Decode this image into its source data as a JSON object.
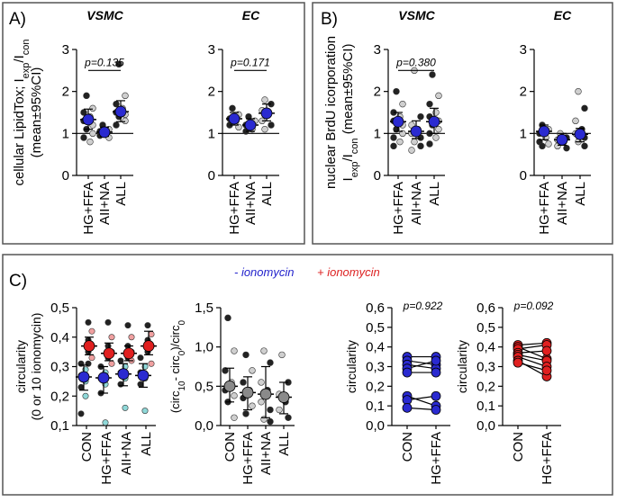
{
  "colors": {
    "panel_border": "#555555",
    "minus_label": "#2222cc",
    "plus_label": "#dd2222",
    "blue_mean": "#2a2ad0",
    "red_mean": "#e02020",
    "gray_mean": "#8a8a8a",
    "cyan_point": "#8fd8d8",
    "pink_point": "#f0a0a0",
    "dark_point": "#222222",
    "light_point": "#cfcfcf"
  },
  "panels": {
    "A": {
      "label": "A)"
    },
    "B": {
      "label": "B)"
    },
    "C": {
      "label": "C)"
    }
  },
  "legend": {
    "minus": "- ionomycin",
    "plus": "+ ionomycin"
  },
  "chart_data": [
    {
      "id": "A1",
      "type": "scatter",
      "title": "VSMC",
      "ylabel_main": "cellular LipidTox; I",
      "ylabel_sub1": "exp",
      "ylabel_mid": "/I",
      "ylabel_sub2": "con",
      "ylabel2": "(mean±95%CI)",
      "ylim": [
        0,
        3
      ],
      "yticks": [
        "0",
        "1",
        "2",
        "3"
      ],
      "ref_line": 1,
      "categories": [
        "HG+FFA",
        "AII+NA",
        "ALL"
      ],
      "means": [
        1.33,
        1.03,
        1.52
      ],
      "ci_low": [
        1.1,
        0.93,
        1.28
      ],
      "ci_high": [
        1.58,
        1.15,
        1.78
      ],
      "points": [
        [
          1.9,
          1.6,
          1.5,
          1.4,
          1.3,
          1.2,
          1.1,
          1.0,
          0.9,
          0.8
        ],
        [
          1.2,
          1.1,
          1.05,
          1.0,
          0.95,
          0.9
        ],
        [
          2.65,
          1.9,
          1.7,
          1.6,
          1.5,
          1.45,
          1.4,
          1.3,
          1.2
        ]
      ],
      "pvalue": "p=0.135",
      "bracket": [
        0,
        2
      ],
      "bracket_y": 2.5
    },
    {
      "id": "A2",
      "type": "scatter",
      "title": "EC",
      "ylim": [
        0,
        3
      ],
      "yticks": [
        "0",
        "1",
        "2",
        "3"
      ],
      "ref_line": 1,
      "categories": [
        "HG+FFA",
        "AII+NA",
        "ALL"
      ],
      "means": [
        1.35,
        1.2,
        1.48
      ],
      "ci_low": [
        1.2,
        1.05,
        1.3
      ],
      "ci_high": [
        1.5,
        1.35,
        1.7
      ],
      "points": [
        [
          1.6,
          1.45,
          1.35,
          1.3,
          1.2,
          1.15
        ],
        [
          1.4,
          1.3,
          1.2,
          1.1,
          1.05
        ],
        [
          1.8,
          1.7,
          1.55,
          1.45,
          1.3,
          1.2,
          1.1
        ]
      ],
      "pvalue": "p=0.171",
      "bracket": [
        0,
        2
      ],
      "bracket_y": 2.5
    },
    {
      "id": "B1",
      "type": "scatter",
      "title": "VSMC",
      "ylabel_line1": "nuclear BrdU icorporation",
      "ylabel_main": "I",
      "ylabel_sub1": "exp",
      "ylabel_mid": "/I",
      "ylabel_sub2": "con",
      "ylabel_tail": " (mean±95%CI)",
      "ylim": [
        0,
        3
      ],
      "yticks": [
        "0",
        "1",
        "2",
        "3"
      ],
      "ref_line": 1,
      "categories": [
        "HG+FFA",
        "AII+NA",
        "ALL"
      ],
      "means": [
        1.28,
        1.05,
        1.28
      ],
      "ci_low": [
        1.05,
        0.88,
        1.0
      ],
      "ci_high": [
        1.5,
        1.3,
        1.6
      ],
      "points": [
        [
          2.0,
          1.7,
          1.5,
          1.4,
          1.3,
          1.2,
          1.1,
          1.0,
          0.9,
          0.8,
          0.7
        ],
        [
          2.5,
          1.4,
          1.2,
          1.1,
          1.0,
          0.9,
          0.8,
          0.7,
          0.6
        ],
        [
          2.4,
          1.9,
          1.7,
          1.5,
          1.4,
          1.3,
          1.2,
          1.1,
          1.0,
          0.9,
          0.75
        ]
      ],
      "pvalue": "p=0.380",
      "bracket": [
        0,
        2
      ],
      "bracket_y": 2.5
    },
    {
      "id": "B2",
      "type": "scatter",
      "title": "EC",
      "ylim": [
        0,
        3
      ],
      "yticks": [
        "0",
        "1",
        "2",
        "3"
      ],
      "ref_line": 1,
      "categories": [
        "HG+FFA",
        "AII+NA",
        "ALL"
      ],
      "means": [
        1.05,
        0.85,
        0.98
      ],
      "ci_low": [
        0.85,
        0.72,
        0.8
      ],
      "ci_high": [
        1.2,
        1.0,
        1.12
      ],
      "points": [
        [
          1.2,
          1.1,
          1.0,
          0.9,
          0.8,
          0.75,
          0.7
        ],
        [
          1.0,
          0.9,
          0.85,
          0.8,
          0.7,
          0.65
        ],
        [
          2.0,
          1.6,
          1.3,
          1.1,
          1.0,
          0.9,
          0.8,
          0.7
        ]
      ]
    },
    {
      "id": "C1",
      "type": "scatter",
      "ylabel": "circularity",
      "ylabel2": "(0 or 10 ionomycin)",
      "ylim": [
        0.1,
        0.5
      ],
      "yticks": [
        "0,1",
        "0,2",
        "0,3",
        "0,4",
        "0,5"
      ],
      "categories": [
        "CON",
        "HG+FFA",
        "AII+NA",
        "ALL"
      ],
      "minus_means": [
        0.265,
        0.262,
        0.275,
        0.27
      ],
      "minus_ci_low": [
        0.22,
        0.21,
        0.235,
        0.23
      ],
      "minus_ci_high": [
        0.305,
        0.3,
        0.31,
        0.31
      ],
      "plus_means": [
        0.37,
        0.345,
        0.345,
        0.37
      ],
      "plus_ci_low": [
        0.34,
        0.32,
        0.32,
        0.34
      ],
      "plus_ci_high": [
        0.4,
        0.38,
        0.37,
        0.42
      ],
      "minus_points": [
        [
          0.31,
          0.29,
          0.27,
          0.25,
          0.23,
          0.2,
          0.14
        ],
        [
          0.3,
          0.28,
          0.26,
          0.24,
          0.21,
          0.11
        ],
        [
          0.32,
          0.3,
          0.28,
          0.26,
          0.24,
          0.16
        ],
        [
          0.33,
          0.3,
          0.28,
          0.26,
          0.24,
          0.15
        ]
      ],
      "plus_points": [
        [
          0.45,
          0.42,
          0.39,
          0.37,
          0.35,
          0.33,
          0.31
        ],
        [
          0.45,
          0.4,
          0.37,
          0.35,
          0.33,
          0.31
        ],
        [
          0.44,
          0.4,
          0.37,
          0.35,
          0.33,
          0.32
        ],
        [
          0.44,
          0.41,
          0.39,
          0.37,
          0.35,
          0.31
        ]
      ]
    },
    {
      "id": "C2",
      "type": "scatter",
      "ylabel": "(circ",
      "ylabel_sub1": "10",
      "ylabel_mid": "- circ",
      "ylabel_sub2": "0",
      "ylabel_tail": ")/circ",
      "ylabel_sub3": "0",
      "ylim": [
        0,
        1.5
      ],
      "yticks": [
        "0,0",
        "0,5",
        "1,0",
        "1,5"
      ],
      "categories": [
        "CON",
        "HG+FFA",
        "AII+NA",
        "ALL"
      ],
      "means": [
        0.5,
        0.42,
        0.4,
        0.36
      ],
      "ci_low": [
        0.3,
        0.2,
        0.1,
        0.15
      ],
      "ci_high": [
        0.73,
        0.62,
        0.75,
        0.55
      ],
      "points": [
        [
          1.37,
          0.95,
          0.7,
          0.55,
          0.45,
          0.38,
          0.3,
          0.1
        ],
        [
          0.9,
          0.7,
          0.55,
          0.45,
          0.35,
          0.25,
          0.15
        ],
        [
          0.95,
          0.8,
          0.55,
          0.45,
          0.3,
          0.2,
          0.08,
          0.05
        ],
        [
          0.9,
          0.55,
          0.4,
          0.3,
          0.2,
          0.1
        ]
      ]
    },
    {
      "id": "C3",
      "type": "line",
      "color": "blue",
      "ylabel": "circularity",
      "ylim": [
        0,
        0.6
      ],
      "yticks": [
        "0,0",
        "0,1",
        "0,2",
        "0,3",
        "0,4",
        "0,5",
        "0,6"
      ],
      "categories": [
        "CON",
        "HG+FFA"
      ],
      "pairs": [
        [
          0.35,
          0.35
        ],
        [
          0.33,
          0.31
        ],
        [
          0.31,
          0.29
        ],
        [
          0.29,
          0.33
        ],
        [
          0.27,
          0.27
        ],
        [
          0.15,
          0.1
        ],
        [
          0.13,
          0.15
        ],
        [
          0.09,
          0.08
        ]
      ],
      "pvalue": "p=0.922"
    },
    {
      "id": "C4",
      "type": "line",
      "color": "red",
      "ylabel": "circularity",
      "ylim": [
        0,
        0.6
      ],
      "yticks": [
        "0,0",
        "0,1",
        "0,2",
        "0,3",
        "0,4",
        "0,5",
        "0,6"
      ],
      "categories": [
        "CON",
        "HG+FFA"
      ],
      "pairs": [
        [
          0.41,
          0.42
        ],
        [
          0.4,
          0.34
        ],
        [
          0.39,
          0.41
        ],
        [
          0.37,
          0.38
        ],
        [
          0.36,
          0.33
        ],
        [
          0.35,
          0.3
        ],
        [
          0.33,
          0.25
        ],
        [
          0.32,
          0.28
        ]
      ],
      "pvalue": "p=0.092"
    }
  ]
}
